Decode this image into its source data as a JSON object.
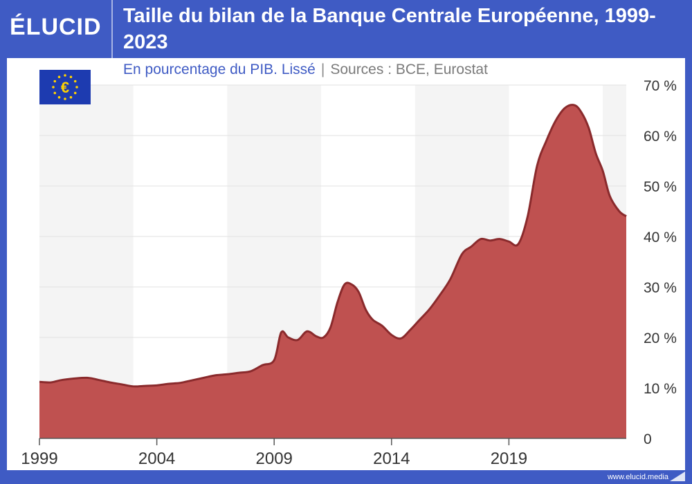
{
  "header": {
    "logo": "ÉLUCID",
    "title": "Taille du bilan de la Banque Centrale Européenne, 1999-2023"
  },
  "subtitle": {
    "main": "En pourcentage du PIB. Lissé",
    "separator": "|",
    "sources": "Sources : BCE, Eurostat"
  },
  "footer": {
    "url": "www.elucid.media"
  },
  "flag_icon": "eu-flag-euro-icon",
  "colors": {
    "brand": "#3f5bc4",
    "area_fill": "#bf5150",
    "area_line": "#8a2a2c",
    "band": "#f4f4f4"
  },
  "chart_data": {
    "type": "area",
    "x": [
      1999,
      1999.5,
      2000,
      2001,
      2001.5,
      2002,
      2002.5,
      2003,
      2003.5,
      2004,
      2004.5,
      2005,
      2005.5,
      2006,
      2006.5,
      2007,
      2007.5,
      2008,
      2008.5,
      2009,
      2009.3,
      2009.6,
      2010,
      2010.4,
      2010.8,
      2011.1,
      2011.4,
      2011.7,
      2012,
      2012.3,
      2012.6,
      2012.9,
      2013.2,
      2013.6,
      2014,
      2014.4,
      2014.8,
      2015.2,
      2015.6,
      2016,
      2016.5,
      2017,
      2017.4,
      2017.8,
      2018.2,
      2018.6,
      2019,
      2019.4,
      2019.8,
      2020.2,
      2020.6,
      2021,
      2021.4,
      2021.8,
      2022.1,
      2022.4,
      2022.7,
      2023,
      2023.3,
      2023.7,
      2024
    ],
    "y": [
      11.2,
      11.1,
      11.6,
      12.0,
      11.6,
      11.1,
      10.7,
      10.3,
      10.4,
      10.5,
      10.8,
      11.0,
      11.5,
      12.0,
      12.5,
      12.7,
      13.0,
      13.3,
      14.5,
      15.5,
      21.0,
      20.0,
      19.5,
      21.2,
      20.2,
      20.0,
      22.0,
      27.0,
      30.5,
      30.5,
      29.0,
      25.5,
      23.5,
      22.3,
      20.5,
      19.8,
      21.5,
      23.5,
      25.5,
      28.0,
      31.5,
      36.5,
      38.0,
      39.5,
      39.2,
      39.5,
      39.0,
      38.5,
      44.0,
      54.0,
      59.0,
      63.0,
      65.5,
      66.0,
      64.5,
      61.5,
      56.5,
      53.0,
      48.0,
      45.0,
      44.0
    ],
    "xlim": [
      1999,
      2024
    ],
    "ylim": [
      0,
      70
    ],
    "x_ticks": [
      1999,
      2004,
      2009,
      2014,
      2019
    ],
    "x_tick_labels": [
      "1999",
      "2004",
      "2009",
      "2014",
      "2019"
    ],
    "y_ticks": [
      0,
      10,
      20,
      30,
      40,
      50,
      60,
      70
    ],
    "y_tick_labels": [
      "0",
      "10 %",
      "20 %",
      "30 %",
      "40 %",
      "50 %",
      "60 %",
      "70 %"
    ],
    "grid": true,
    "alternating_year_bands": true
  }
}
